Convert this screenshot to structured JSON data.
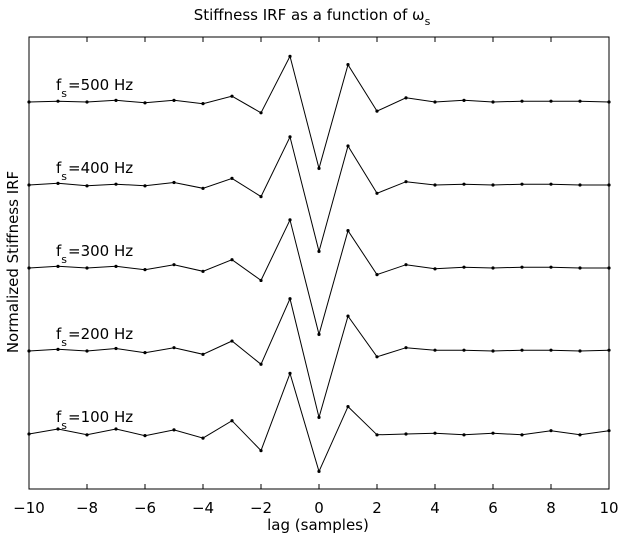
{
  "chart_data": {
    "type": "line",
    "title": {
      "main": "Stiffness IRF as a function of ",
      "symbol": "ω",
      "sub": "s"
    },
    "xlabel": "lag (samples)",
    "ylabel": "Normalized Stiffness IRF",
    "xlim": [
      -10,
      10
    ],
    "xticks": [
      -10,
      -8,
      -6,
      -4,
      -2,
      0,
      2,
      4,
      6,
      8,
      10
    ],
    "grid": false,
    "y_offset_spacing": 1,
    "x": [
      -10,
      -9,
      -8,
      -7,
      -6,
      -5,
      -4,
      -3,
      -2,
      -1,
      0,
      1,
      2,
      3,
      4,
      5,
      6,
      7,
      8,
      9,
      10
    ],
    "series": [
      {
        "name": "=500 Hz",
        "label_prefix": "f",
        "label_sub": "s",
        "offset": 4,
        "values": [
          0.0,
          0.01,
          0.0,
          0.02,
          -0.01,
          0.02,
          -0.02,
          0.07,
          -0.13,
          0.55,
          -0.8,
          0.45,
          -0.11,
          0.05,
          0.0,
          0.02,
          0.0,
          0.01,
          0.01,
          0.01,
          0.0
        ]
      },
      {
        "name": "=400 Hz",
        "label_prefix": "f",
        "label_sub": "s",
        "offset": 3,
        "values": [
          0.0,
          0.02,
          -0.01,
          0.01,
          -0.01,
          0.03,
          -0.04,
          0.08,
          -0.14,
          0.58,
          -0.8,
          0.47,
          -0.1,
          0.04,
          0.0,
          0.01,
          0.0,
          0.01,
          0.01,
          0.0,
          0.0
        ]
      },
      {
        "name": "=300 Hz",
        "label_prefix": "f",
        "label_sub": "s",
        "offset": 2,
        "values": [
          0.0,
          0.02,
          0.0,
          0.02,
          -0.02,
          0.04,
          -0.04,
          0.1,
          -0.15,
          0.58,
          -0.8,
          0.45,
          -0.08,
          0.04,
          -0.01,
          0.01,
          0.0,
          0.01,
          0.01,
          0.0,
          0.0
        ]
      },
      {
        "name": "=200 Hz",
        "label_prefix": "f",
        "label_sub": "s",
        "offset": 1,
        "values": [
          0.0,
          0.02,
          0.0,
          0.03,
          -0.02,
          0.04,
          -0.04,
          0.12,
          -0.16,
          0.63,
          -0.8,
          0.42,
          -0.07,
          0.04,
          0.01,
          0.01,
          0.0,
          0.01,
          0.01,
          0.0,
          0.01
        ]
      },
      {
        "name": "=100 Hz",
        "label_prefix": "f",
        "label_sub": "s",
        "offset": 0,
        "values": [
          0.0,
          0.06,
          -0.01,
          0.06,
          -0.02,
          0.05,
          -0.05,
          0.16,
          -0.2,
          0.73,
          -0.45,
          0.33,
          -0.01,
          0.0,
          0.01,
          -0.01,
          0.01,
          -0.01,
          0.04,
          -0.01,
          0.04
        ]
      }
    ]
  }
}
